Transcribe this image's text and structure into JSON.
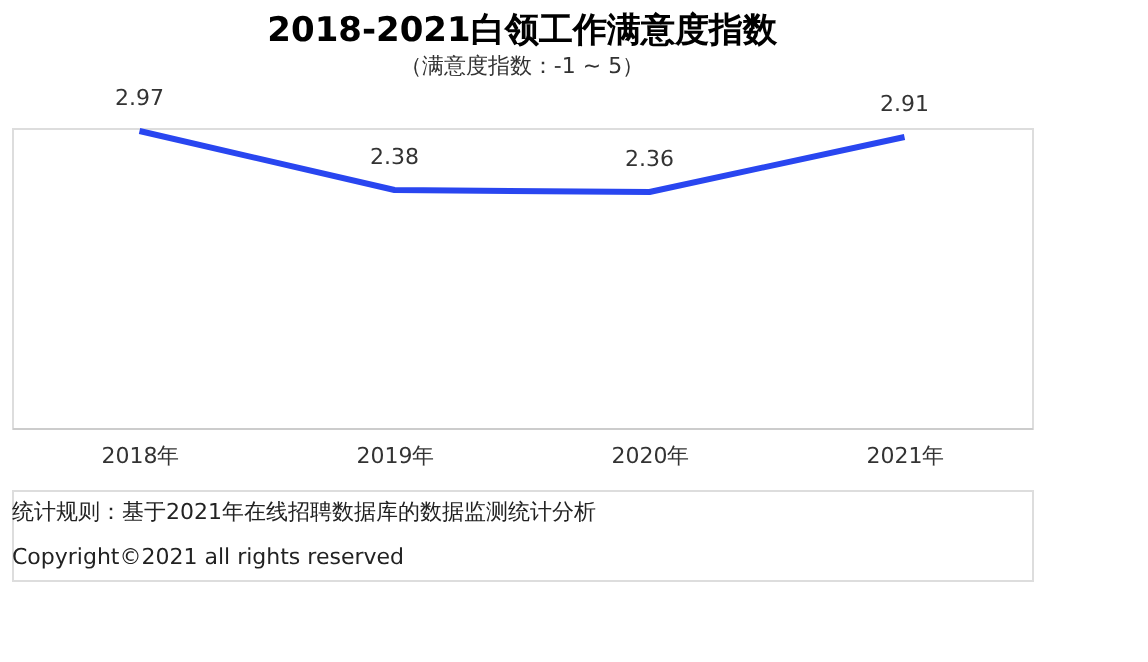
{
  "chart_data": {
    "type": "line",
    "title": "2018-2021白领工作满意度指数",
    "subtitle": "（满意度指数：-1 ~ 5）",
    "categories": [
      "2018年",
      "2019年",
      "2020年",
      "2021年"
    ],
    "series": [
      {
        "color": "#2946f0",
        "values": [
          2.97,
          2.38,
          2.36,
          2.91
        ]
      }
    ],
    "data_labels": true,
    "grid": false,
    "marker": "none",
    "line_style": "solid",
    "tick_labels": "x",
    "annotations": [
      "统计规则：基于2021年在线招聘数据库的数据监测统计分析",
      "Copyright©2021 all rights reserved"
    ]
  }
}
